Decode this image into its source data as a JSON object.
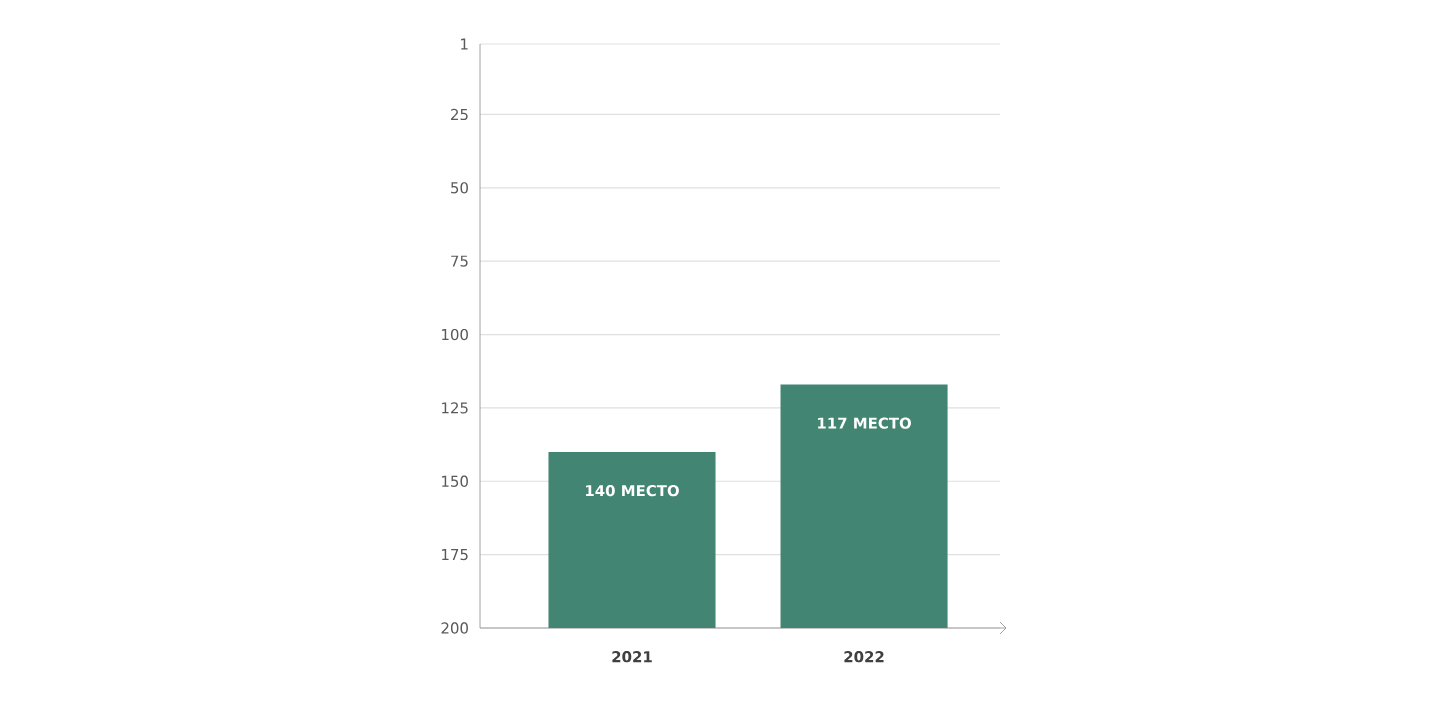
{
  "chart_data": {
    "type": "bar",
    "categories": [
      "2021",
      "2022"
    ],
    "values": [
      -60,
      -83
    ],
    "base": [
      200,
      200
    ],
    "value_labels": [
      "140 МЕСТО",
      "117 МЕСТО"
    ],
    "color": "#438573",
    "ylim": [
      200,
      1
    ],
    "yticks": [
      1,
      25,
      50,
      75,
      100,
      125,
      150,
      175,
      200
    ],
    "grid": "y"
  }
}
